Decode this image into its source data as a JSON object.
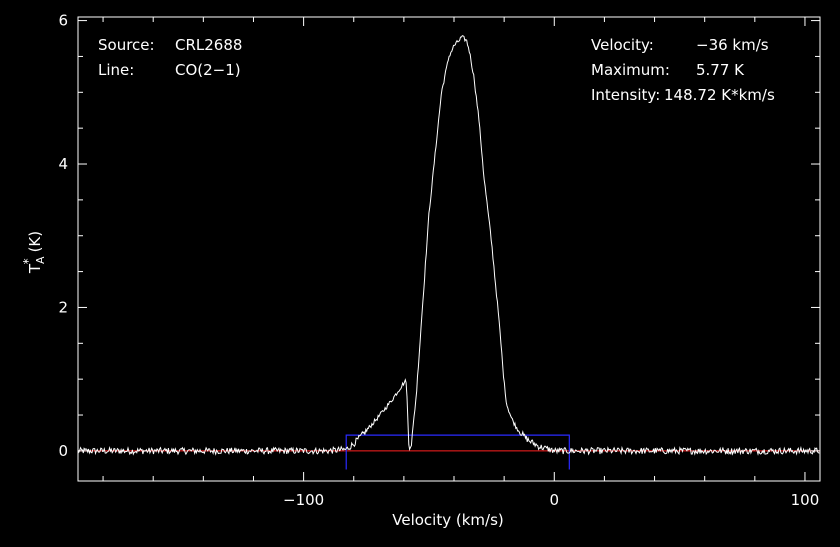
{
  "chart_data": {
    "type": "line",
    "title": "",
    "xlabel": "Velocity (km/s)",
    "ylabel": "T*A (K)",
    "ylabel_base": "T",
    "ylabel_sup": "*",
    "ylabel_sub": "A",
    "ylabel_unit": "(K)",
    "xlim": [
      -190,
      106
    ],
    "ylim": [
      -0.42,
      6.05
    ],
    "xticks": [
      -100,
      0,
      100
    ],
    "xtick_labels": [
      "−100",
      "0",
      "100"
    ],
    "yticks": [
      0,
      2,
      4,
      6
    ],
    "ytick_labels": [
      "0",
      "2",
      "4",
      "6"
    ],
    "grid": false,
    "info_left": [
      {
        "key": "Source:",
        "value": "CRL2688"
      },
      {
        "key": "Line:",
        "value": "CO(2−1)"
      }
    ],
    "info_right": [
      {
        "key": "Velocity:",
        "value": "−36 km/s"
      },
      {
        "key": "Maximum:",
        "value": "5.77 K"
      },
      {
        "key": "Intensity:",
        "value": "148.72 K*km/s"
      }
    ],
    "baseline": {
      "y": 0,
      "x_range": [
        -190,
        106
      ],
      "color": "#ff2020"
    },
    "integration_window": {
      "x_range": [
        -83,
        6
      ],
      "y_range": [
        -0.26,
        0.22
      ],
      "color": "#2a2aff"
    },
    "spectrum_color": "#ffffff",
    "series": [
      {
        "x": [
          -190,
          -150,
          -110,
          -90,
          -83,
          -80,
          -75,
          -70,
          -65,
          -62,
          -60,
          -59,
          -58.5,
          -58,
          -57,
          -55,
          -53,
          -50,
          -45,
          -42,
          -40,
          -38,
          -37,
          -36,
          -35,
          -34,
          -32,
          -30,
          -28,
          -25,
          -22,
          -20,
          -19,
          -17,
          -15,
          -12,
          -10,
          -6,
          -3,
          0,
          10,
          50,
          106
        ],
        "y": [
          0,
          0,
          0,
          0,
          0.02,
          0.1,
          0.28,
          0.48,
          0.7,
          0.85,
          0.95,
          0.98,
          0.5,
          0.05,
          0.1,
          0.8,
          1.8,
          3.3,
          5.0,
          5.5,
          5.65,
          5.72,
          5.77,
          5.75,
          5.72,
          5.6,
          5.2,
          4.6,
          3.8,
          2.9,
          1.8,
          0.95,
          0.65,
          0.45,
          0.32,
          0.2,
          0.14,
          0.06,
          0.03,
          0,
          0,
          0,
          0
        ]
      }
    ]
  }
}
